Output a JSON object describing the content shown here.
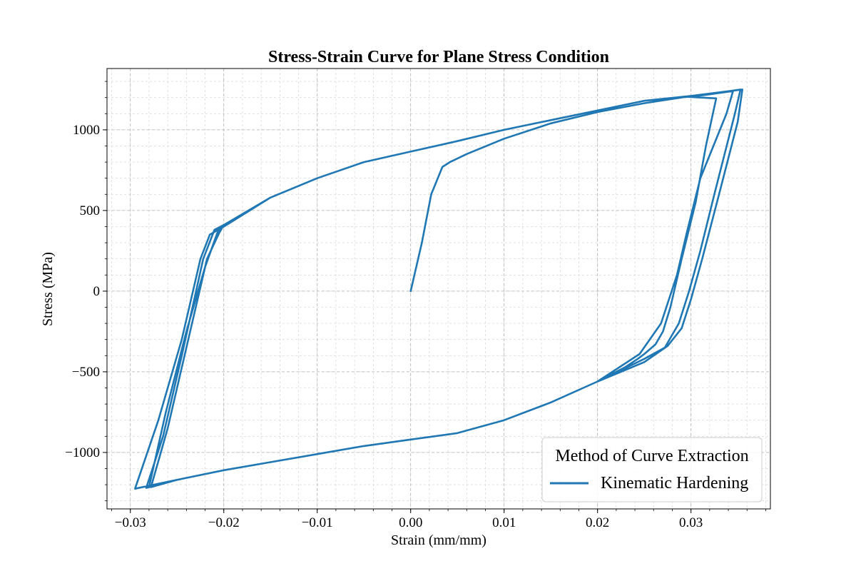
{
  "chart_data": {
    "type": "line",
    "title": "Stress-Strain Curve for Plane Stress Condition",
    "xlabel": "Strain (mm/mm)",
    "ylabel": "Stress (MPa)",
    "xlim": [
      -0.0325,
      0.0385
    ],
    "ylim": [
      -1350,
      1380
    ],
    "xticks": [
      -0.03,
      -0.02,
      -0.01,
      0.0,
      0.01,
      0.02,
      0.03
    ],
    "xtick_labels": [
      "−0.03",
      "−0.02",
      "−0.01",
      "0.00",
      "0.01",
      "0.02",
      "0.03"
    ],
    "yticks": [
      -1000,
      -500,
      0,
      500,
      1000
    ],
    "ytick_labels": [
      "−1000",
      "−500",
      "0",
      "500",
      "1000"
    ],
    "grid": true,
    "legend": {
      "title": "Method of Curve Extraction",
      "placement": "lower-right"
    },
    "series": [
      {
        "name": "Kinematic Hardening",
        "color": "#1f77b4",
        "x": [
          0.0,
          0.0012,
          0.0022,
          0.0034,
          0.0042,
          0.006,
          0.01,
          0.015,
          0.02,
          0.025,
          0.0295,
          0.0327,
          0.0316,
          0.0305,
          0.029,
          0.0278,
          0.027,
          0.0262,
          0.025,
          0.0243,
          0.023,
          0.02,
          0.015,
          0.01,
          0.005,
          0.0,
          -0.005,
          -0.01,
          -0.015,
          -0.02,
          -0.025,
          -0.0295,
          -0.027,
          -0.0245,
          -0.0225,
          -0.0215,
          -0.02,
          -0.015,
          -0.01,
          -0.005,
          0.0,
          0.005,
          0.01,
          0.015,
          0.02,
          0.025,
          0.0307,
          0.0345,
          0.0338,
          0.031,
          0.0295,
          0.0285,
          0.0268,
          0.0245,
          0.02,
          0.015,
          0.01,
          0.005,
          0.0,
          -0.005,
          -0.01,
          -0.015,
          -0.02,
          -0.025,
          -0.0283,
          -0.0265,
          -0.0245,
          -0.0222,
          -0.021,
          -0.02,
          -0.015,
          -0.01,
          -0.005,
          0.0,
          0.005,
          0.01,
          0.015,
          0.02,
          0.025,
          0.0305,
          0.0353,
          0.0347,
          0.0325,
          0.031,
          0.0298,
          0.0287,
          0.0272,
          0.025,
          0.02,
          0.015,
          0.01,
          0.005,
          0.0,
          -0.005,
          -0.01,
          -0.015,
          -0.02,
          -0.025,
          -0.0278,
          -0.026,
          -0.024,
          -0.0218,
          -0.0205,
          -0.02,
          -0.015,
          -0.01,
          -0.005,
          0.0,
          0.005,
          0.01,
          0.015,
          0.02,
          0.025,
          0.03,
          0.0355,
          0.035,
          0.033,
          0.0312,
          0.03,
          0.029,
          0.0275,
          0.0255,
          0.025,
          0.02,
          0.015,
          0.01,
          0.005,
          0.0,
          -0.005,
          -0.01,
          -0.015,
          -0.02,
          -0.025,
          -0.028,
          -0.0262,
          -0.024,
          -0.022,
          -0.0207,
          -0.02
        ],
        "y": [
          0,
          300,
          600,
          770,
          800,
          850,
          945,
          1040,
          1110,
          1165,
          1205,
          1195,
          900,
          550,
          200,
          -100,
          -250,
          -330,
          -390,
          -420,
          -470,
          -560,
          -690,
          -800,
          -880,
          -920,
          -960,
          -1010,
          -1060,
          -1110,
          -1170,
          -1225,
          -800,
          -300,
          200,
          350,
          400,
          580,
          700,
          800,
          865,
          930,
          1000,
          1060,
          1120,
          1180,
          1210,
          1240,
          1100,
          700,
          350,
          100,
          -200,
          -390,
          -560,
          -690,
          -800,
          -880,
          -920,
          -960,
          -1010,
          -1060,
          -1110,
          -1170,
          -1220,
          -900,
          -400,
          200,
          380,
          410,
          580,
          700,
          800,
          865,
          930,
          1000,
          1060,
          1120,
          1180,
          1210,
          1250,
          1100,
          600,
          250,
          0,
          -200,
          -350,
          -420,
          -560,
          -690,
          -800,
          -880,
          -920,
          -960,
          -1010,
          -1060,
          -1110,
          -1170,
          -1215,
          -850,
          -350,
          200,
          360,
          410,
          580,
          700,
          800,
          865,
          930,
          1000,
          1060,
          1120,
          1180,
          1210,
          1250,
          1050,
          600,
          200,
          -50,
          -230,
          -340,
          -420,
          -440,
          -560,
          -690,
          -800,
          -880,
          -920,
          -960,
          -1010,
          -1060,
          -1110,
          -1170,
          -1215,
          -750,
          -250,
          150,
          360,
          410
        ]
      }
    ]
  }
}
